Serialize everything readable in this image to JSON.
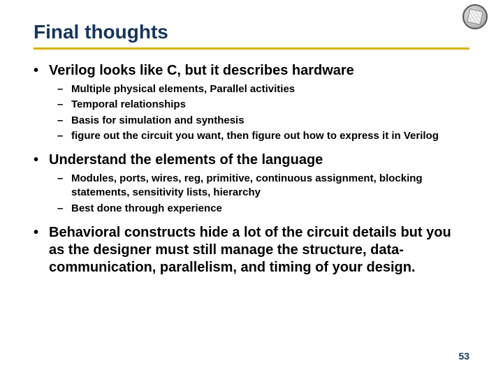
{
  "title": "Final thoughts",
  "colors": {
    "title": "#17365d",
    "rule": "#d6b200",
    "text": "#000000",
    "pagenum": "#17365d",
    "background": "#ffffff"
  },
  "bullets": [
    {
      "text": "Verilog looks like C, but it describes hardware",
      "sub": [
        "Multiple physical elements, Parallel activities",
        "Temporal relationships",
        "Basis for simulation and synthesis",
        "figure out the circuit you want, then figure out how to express it in Verilog"
      ]
    },
    {
      "text": "Understand the elements of the language",
      "sub": [
        "Modules, ports, wires, reg, primitive, continuous assignment, blocking statements, sensitivity lists, hierarchy",
        "Best done through experience"
      ]
    },
    {
      "text": "Behavioral constructs hide a lot of the circuit details but you as the designer must still manage the structure, data-communication, parallelism, and timing of your design.",
      "sub": []
    }
  ],
  "pagenum": "53",
  "markers": {
    "level1": "•",
    "level2": "–"
  }
}
